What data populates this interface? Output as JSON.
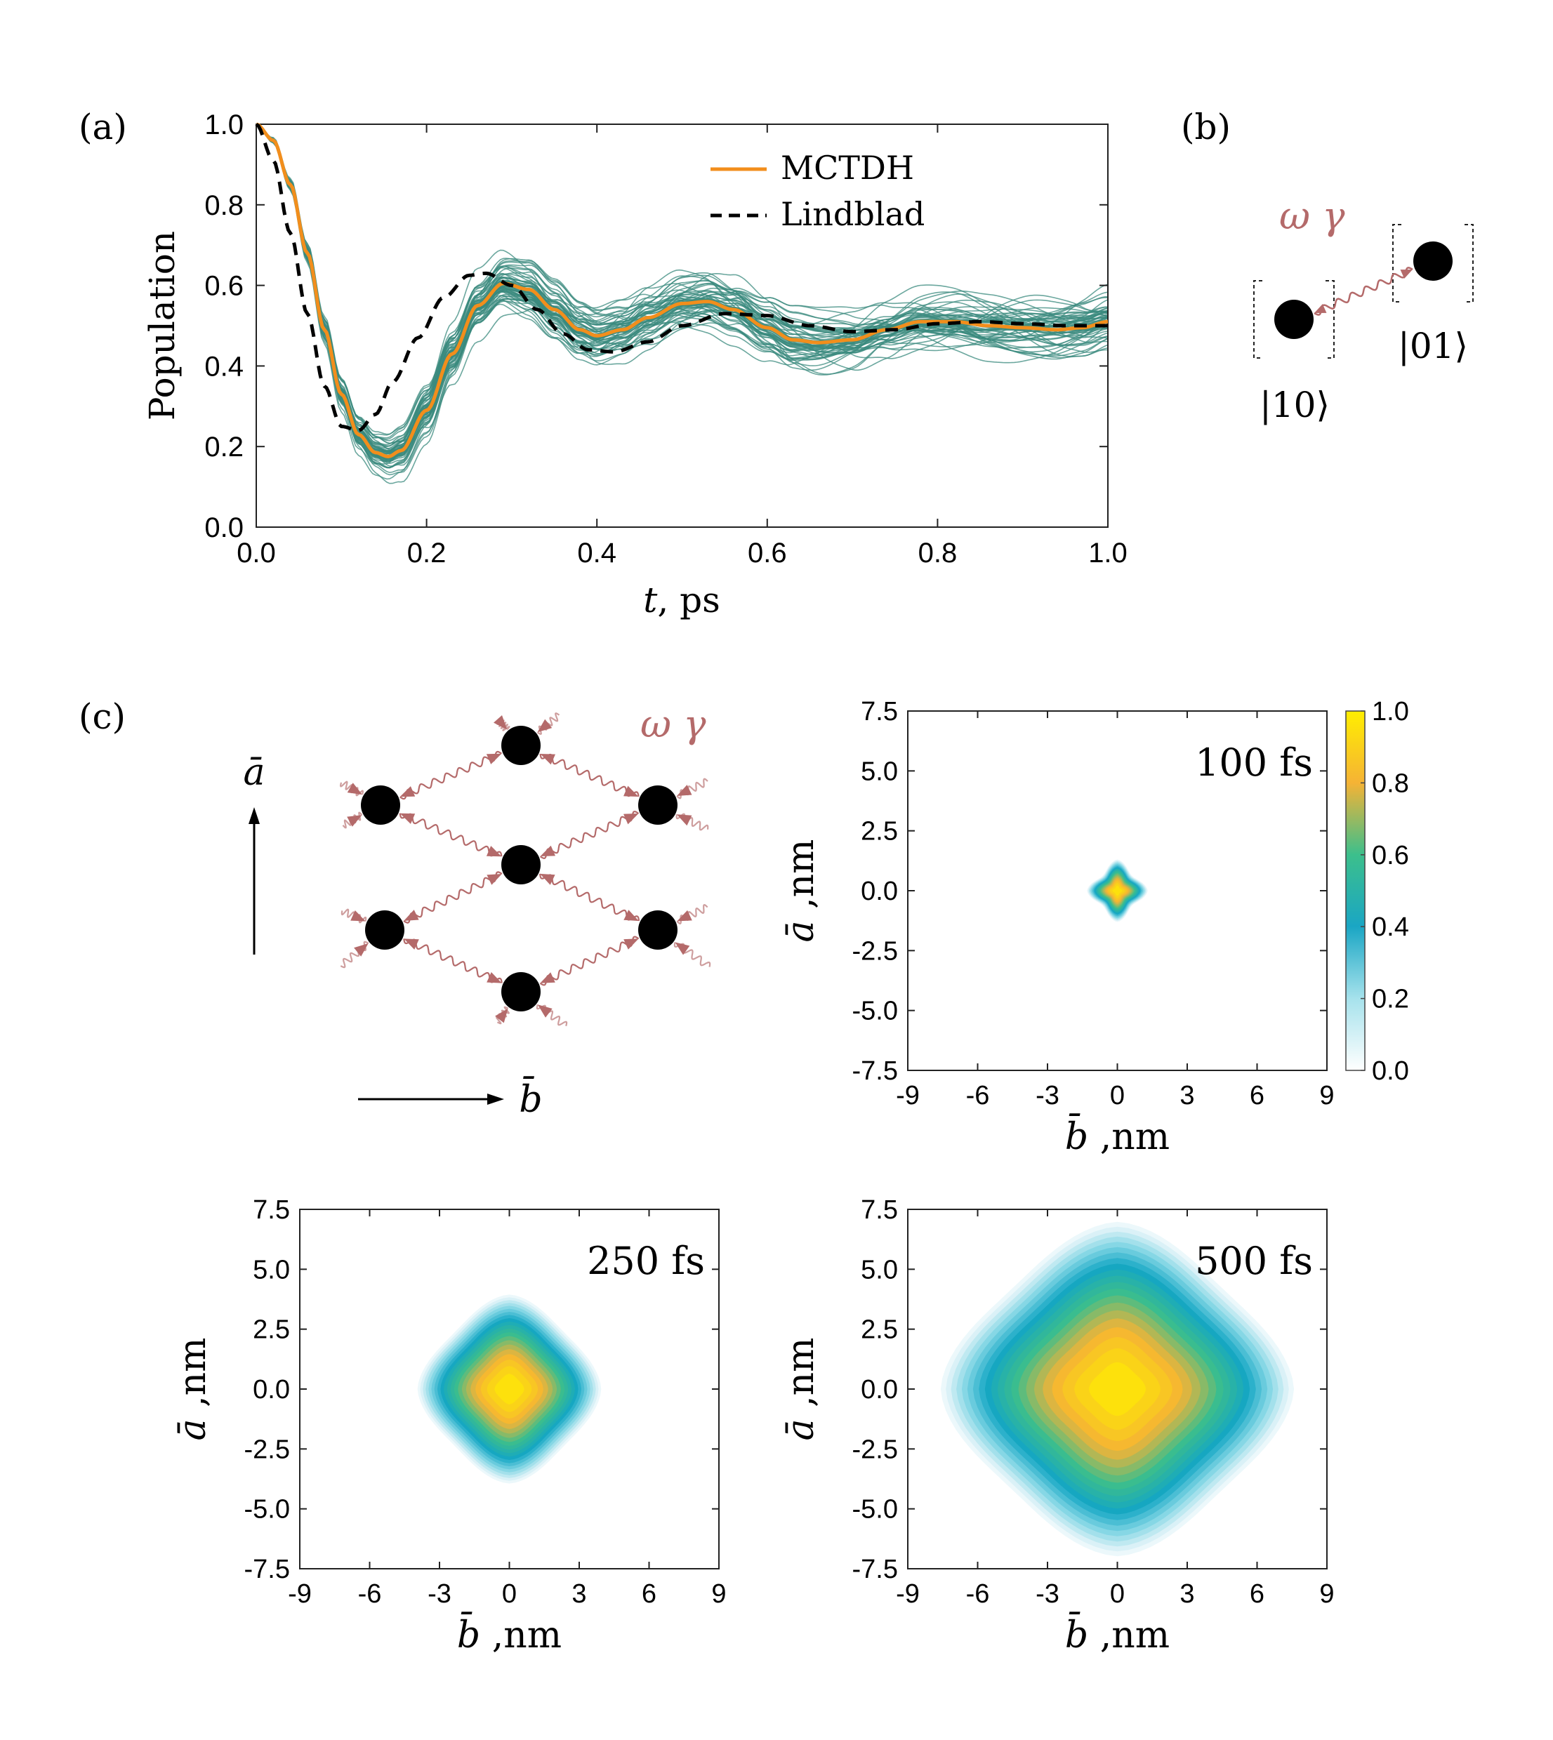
{
  "labels": {
    "a": "(a)",
    "b": "(b)",
    "c": "(c)"
  },
  "chart_data": [
    {
      "type": "line",
      "panel": "(a)",
      "xlabel_var": "t",
      "xlabel_unit": ", ps",
      "ylabel": "Population",
      "xlim": [
        0.0,
        1.0
      ],
      "ylim": [
        0.0,
        1.0
      ],
      "xticks": [
        "0.0",
        "0.2",
        "0.4",
        "0.6",
        "0.8",
        "1.0"
      ],
      "yticks": [
        "0.0",
        "0.2",
        "0.4",
        "0.6",
        "0.8",
        "1.0"
      ],
      "legend_position": "top-right",
      "series": [
        {
          "name": "MCTDH",
          "color": "#f28e1c",
          "style": "solid",
          "x": [
            0.0,
            0.02,
            0.04,
            0.06,
            0.08,
            0.1,
            0.12,
            0.14,
            0.155,
            0.17,
            0.2,
            0.23,
            0.26,
            0.29,
            0.32,
            0.35,
            0.38,
            0.4,
            0.43,
            0.46,
            0.5,
            0.53,
            0.56,
            0.6,
            0.63,
            0.66,
            0.7,
            0.74,
            0.78,
            0.82,
            0.86,
            0.9,
            0.94,
            0.97,
            1.0
          ],
          "y": [
            1.0,
            0.96,
            0.85,
            0.68,
            0.49,
            0.33,
            0.23,
            0.185,
            0.175,
            0.19,
            0.29,
            0.43,
            0.55,
            0.605,
            0.59,
            0.54,
            0.49,
            0.475,
            0.49,
            0.52,
            0.555,
            0.56,
            0.54,
            0.495,
            0.465,
            0.458,
            0.465,
            0.49,
            0.51,
            0.51,
            0.5,
            0.495,
            0.49,
            0.495,
            0.51
          ]
        },
        {
          "name": "Lindblad",
          "color": "#000000",
          "style": "dashed",
          "x": [
            0.0,
            0.02,
            0.04,
            0.06,
            0.08,
            0.1,
            0.12,
            0.14,
            0.16,
            0.19,
            0.22,
            0.25,
            0.27,
            0.3,
            0.33,
            0.36,
            0.39,
            0.42,
            0.46,
            0.5,
            0.55,
            0.6,
            0.65,
            0.7,
            0.75,
            0.8,
            0.85,
            0.9,
            0.95,
            1.0
          ],
          "y": [
            1.0,
            0.91,
            0.73,
            0.53,
            0.35,
            0.25,
            0.24,
            0.28,
            0.36,
            0.47,
            0.57,
            0.625,
            0.63,
            0.6,
            0.54,
            0.48,
            0.44,
            0.435,
            0.46,
            0.5,
            0.53,
            0.525,
            0.5,
            0.485,
            0.49,
            0.505,
            0.51,
            0.505,
            0.5,
            0.5
          ]
        }
      ],
      "ensemble": {
        "color": "#3a8a7d",
        "description_count": 60
      }
    },
    {
      "type": "heatmap",
      "panel": "(c) 100 fs",
      "annotation": "100 fs",
      "xlabel_var": "b̄",
      "xlabel_unit": " ,nm",
      "ylabel_var": "ā",
      "ylabel_unit": " ,nm",
      "xlim": [
        -9,
        9
      ],
      "ylim": [
        -7.5,
        7.5
      ],
      "xticks": [
        "-9",
        "-6",
        "-3",
        "0",
        "3",
        "6",
        "9"
      ],
      "yticks": [
        "-7.5",
        "-5.0",
        "-2.5",
        "0.0",
        "2.5",
        "5.0",
        "7.5"
      ],
      "spread_nm": 1.2,
      "colorbar": {
        "range": [
          0.0,
          1.0
        ],
        "ticks": [
          "0.0",
          "0.2",
          "0.4",
          "0.6",
          "0.8",
          "1.0"
        ]
      }
    },
    {
      "type": "heatmap",
      "panel": "(c) 250 fs",
      "annotation": "250 fs",
      "xlabel_var": "b̄",
      "xlabel_unit": " ,nm",
      "ylabel_var": "ā",
      "ylabel_unit": " ,nm",
      "xlim": [
        -9,
        9
      ],
      "ylim": [
        -7.5,
        7.5
      ],
      "xticks": [
        "-9",
        "-6",
        "-3",
        "0",
        "3",
        "6",
        "9"
      ],
      "yticks": [
        "-7.5",
        "-5.0",
        "-2.5",
        "0.0",
        "2.5",
        "5.0",
        "7.5"
      ],
      "spread_nm": 3.9
    },
    {
      "type": "heatmap",
      "panel": "(c) 500 fs",
      "annotation": "500 fs",
      "xlabel_var": "b̄",
      "xlabel_unit": " ,nm",
      "ylabel_var": "ā",
      "ylabel_unit": " ,nm",
      "xlim": [
        -9,
        9
      ],
      "ylim": [
        -7.5,
        7.5
      ],
      "xticks": [
        "-9",
        "-6",
        "-3",
        "0",
        "3",
        "6",
        "9"
      ],
      "yticks": [
        "-7.5",
        "-5.0",
        "-2.5",
        "0.0",
        "2.5",
        "5.0",
        "7.5"
      ],
      "spread_nm": 7.5
    }
  ],
  "diagram_b": {
    "coupling_label": "ω γ",
    "state_left": "|10⟩",
    "state_right": "|01⟩"
  },
  "diagram_c": {
    "coupling_label": "ω γ",
    "axis_vertical": "ā",
    "axis_horizontal": "b̄"
  },
  "colors": {
    "ensemble": "#3a8a7d",
    "mctdh": "#f28e1c",
    "wavy": "#b46a6a",
    "arrow": "#b46a6a"
  }
}
